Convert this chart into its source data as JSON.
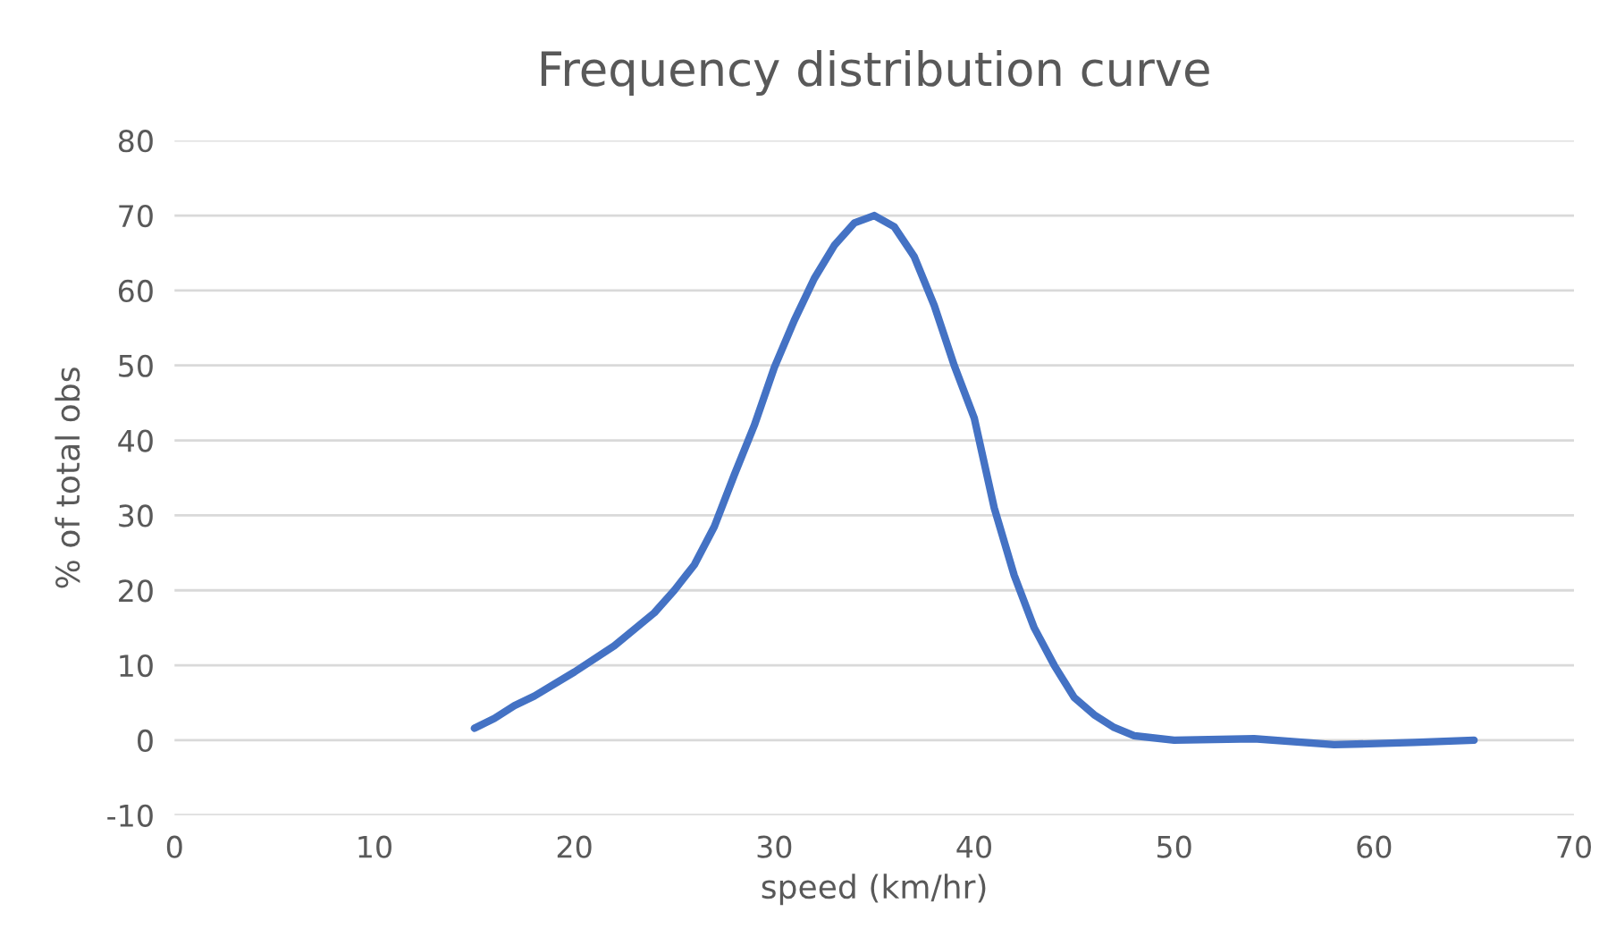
{
  "chart_data": {
    "type": "line",
    "title": "Frequency distribution curve",
    "xlabel": "speed (km/hr)",
    "ylabel": "% of total obs",
    "series": [
      {
        "color": "#4472c4",
        "x": [
          15,
          16,
          17,
          18,
          20,
          22,
          24,
          25,
          26,
          27,
          28,
          29,
          30,
          31,
          32,
          33,
          34,
          35,
          36,
          37,
          38,
          39,
          40,
          41,
          42,
          43,
          44,
          45,
          46,
          47,
          48,
          50,
          54,
          58,
          62,
          65
        ],
        "values": [
          1.6,
          2.9,
          4.6,
          5.9,
          9.1,
          12.6,
          17,
          20,
          23.4,
          28.5,
          35.4,
          42,
          49.7,
          56,
          61.6,
          66,
          69,
          70,
          68.5,
          64.5,
          58,
          50,
          43,
          31,
          22,
          15,
          10,
          5.7,
          3.4,
          1.7,
          0.6,
          0,
          0.2,
          -0.6,
          -0.3,
          0
        ]
      }
    ],
    "xlim": [
      0,
      70
    ],
    "xticks": [
      0,
      10,
      20,
      30,
      40,
      50,
      60,
      70
    ],
    "ylim": [
      -10,
      80
    ],
    "yticks": [
      -10,
      0,
      10,
      20,
      30,
      40,
      50,
      60,
      70,
      80
    ],
    "grid": "y",
    "marker": "none",
    "line_style": "solid",
    "legend": false
  }
}
